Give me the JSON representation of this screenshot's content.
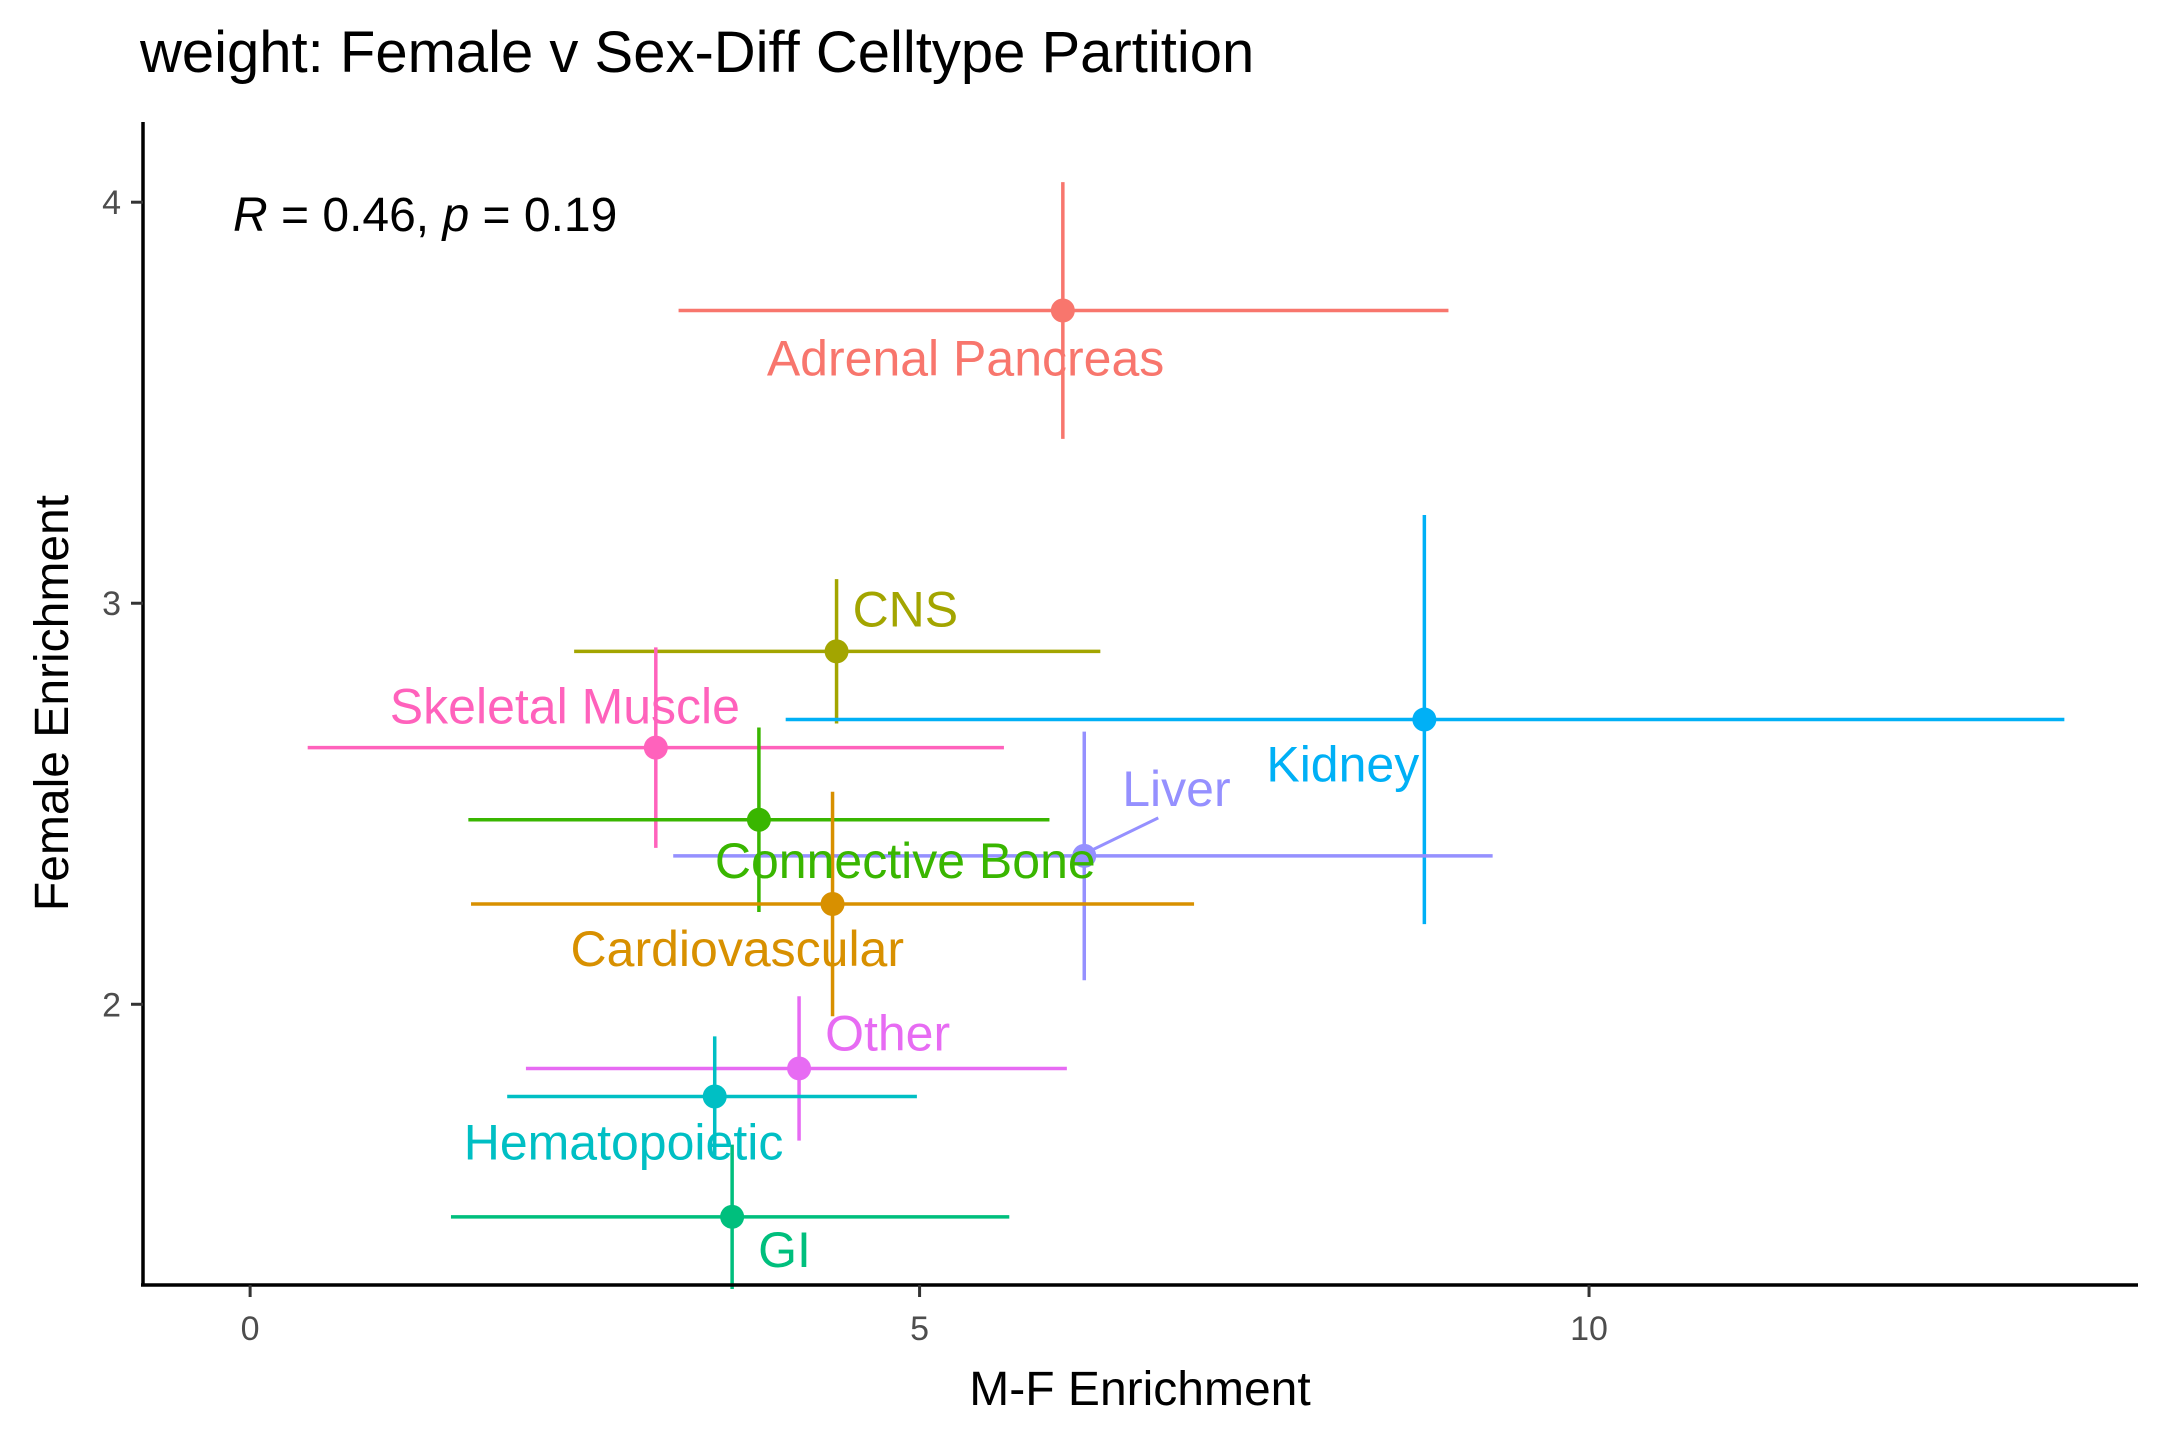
{
  "chart_data": {
    "type": "scatter",
    "title": "weight: Female v Sex-Diff Celltype Partition",
    "xlabel": "M-F Enrichment",
    "ylabel": "Female Enrichment",
    "xlim": [
      -0.8,
      14.1
    ],
    "ylim": [
      1.3,
      4.2
    ],
    "xticks": [
      0,
      5,
      10
    ],
    "yticks": [
      2,
      3,
      4
    ],
    "annotation": {
      "r_symbol": "R",
      "r_text": " = 0.46, ",
      "p_symbol": "p",
      "p_text": " = 0.19"
    },
    "grid": false,
    "legend": "none",
    "points": [
      {
        "label": "Adrenal Pancreas",
        "x": 6.07,
        "y": 3.73,
        "xmin": 3.2,
        "xmax": 8.95,
        "ymin": 3.41,
        "ymax": 4.05,
        "color": "#F8766D"
      },
      {
        "label": "CNS",
        "x": 4.38,
        "y": 2.88,
        "xmin": 2.42,
        "xmax": 6.35,
        "ymin": 2.7,
        "ymax": 3.06,
        "color": "#A3A500"
      },
      {
        "label": "Kidney",
        "x": 8.77,
        "y": 2.71,
        "xmin": 4.0,
        "xmax": 13.55,
        "ymin": 2.2,
        "ymax": 3.22,
        "color": "#00B0F6"
      },
      {
        "label": "Skeletal Muscle",
        "x": 3.03,
        "y": 2.64,
        "xmin": 0.43,
        "xmax": 5.63,
        "ymin": 2.39,
        "ymax": 2.89,
        "color": "#FF62BC"
      },
      {
        "label": "Liver",
        "x": 6.23,
        "y": 2.37,
        "xmin": 3.16,
        "xmax": 9.28,
        "ymin": 2.06,
        "ymax": 2.68,
        "color": "#9590FF"
      },
      {
        "label": "Connective Bone",
        "x": 3.8,
        "y": 2.46,
        "xmin": 1.63,
        "xmax": 5.97,
        "ymin": 2.23,
        "ymax": 2.69,
        "color": "#39B600"
      },
      {
        "label": "Cardiovascular",
        "x": 4.35,
        "y": 2.25,
        "xmin": 1.65,
        "xmax": 7.05,
        "ymin": 1.97,
        "ymax": 2.53,
        "color": "#D89000"
      },
      {
        "label": "Other",
        "x": 4.1,
        "y": 1.84,
        "xmin": 2.06,
        "xmax": 6.1,
        "ymin": 1.66,
        "ymax": 2.02,
        "color": "#E76BF3"
      },
      {
        "label": "Hematopoietic",
        "x": 3.47,
        "y": 1.77,
        "xmin": 1.92,
        "xmax": 4.98,
        "ymin": 1.62,
        "ymax": 1.92,
        "color": "#00BFC4"
      },
      {
        "label": "GI",
        "x": 3.6,
        "y": 1.47,
        "xmin": 1.5,
        "xmax": 5.67,
        "ymin": 1.29,
        "ymax": 1.65,
        "color": "#00BF7D"
      }
    ]
  }
}
